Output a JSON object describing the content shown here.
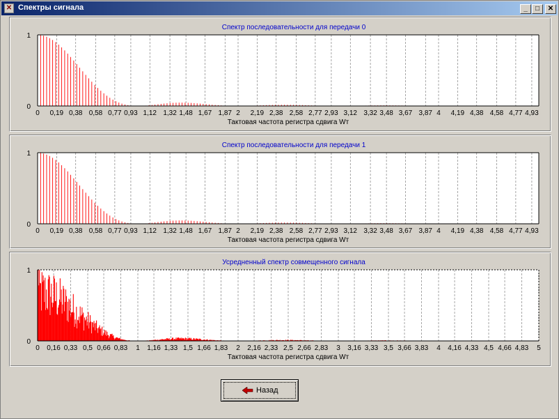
{
  "window": {
    "title": "Спектры сигнала"
  },
  "buttons": {
    "back_label": "Назад"
  },
  "colors": {
    "bar": "#ff0000",
    "title_text": "#0000cc",
    "grid": "#808080"
  },
  "chart_data": [
    {
      "type": "bar",
      "title": "Спектр  последовательности для передачи 0",
      "xlabel": "Тактовая частота регистра сдвига Wт",
      "ylabel": "",
      "xlim": [
        0,
        5
      ],
      "ylim": [
        0,
        1
      ],
      "y_ticks": [
        "0",
        "1"
      ],
      "x_ticks": [
        "0",
        "0,19",
        "0,38",
        "0,58",
        "0,77",
        "0,93",
        "1,12",
        "1,32",
        "1,48",
        "1,67",
        "1,87",
        "2",
        "2,19",
        "2,38",
        "2,58",
        "2,77",
        "2,93",
        "3,12",
        "3,32",
        "3,48",
        "3,67",
        "3,87",
        "4",
        "4,19",
        "4,38",
        "4,58",
        "4,77",
        "4,93"
      ],
      "x_tick_values": [
        0,
        0.19,
        0.38,
        0.58,
        0.77,
        0.93,
        1.12,
        1.32,
        1.48,
        1.67,
        1.87,
        2,
        2.19,
        2.38,
        2.58,
        2.77,
        2.93,
        3.12,
        3.32,
        3.48,
        3.67,
        3.87,
        4,
        4.19,
        4.38,
        4.58,
        4.77,
        4.93
      ],
      "grid": true,
      "series": [
        {
          "model": "sinc2",
          "lines_per_unit": 33.3,
          "amplitude": 1.0
        }
      ]
    },
    {
      "type": "bar",
      "title": "Спектр последовательности для передачи 1",
      "xlabel": "Тактовая частота регистра сдвига Wт",
      "ylabel": "",
      "xlim": [
        0,
        5
      ],
      "ylim": [
        0,
        1
      ],
      "y_ticks": [
        "0",
        "1"
      ],
      "x_ticks": [
        "0",
        "0,19",
        "0,38",
        "0,58",
        "0,77",
        "0,93",
        "1,12",
        "1,32",
        "1,48",
        "1,67",
        "1,87",
        "2",
        "2,19",
        "2,38",
        "2,58",
        "2,77",
        "2,93",
        "3,12",
        "3,32",
        "3,48",
        "3,67",
        "3,87",
        "4",
        "4,19",
        "4,38",
        "4,58",
        "4,77",
        "4,93"
      ],
      "x_tick_values": [
        0,
        0.19,
        0.38,
        0.58,
        0.77,
        0.93,
        1.12,
        1.32,
        1.48,
        1.67,
        1.87,
        2,
        2.19,
        2.38,
        2.58,
        2.77,
        2.93,
        3.12,
        3.32,
        3.48,
        3.67,
        3.87,
        4,
        4.19,
        4.38,
        4.58,
        4.77,
        4.93
      ],
      "grid": true,
      "series": [
        {
          "model": "sinc2",
          "lines_per_unit": 33.3,
          "amplitude": 1.0
        }
      ]
    },
    {
      "type": "bar",
      "title": "Усредненный спектр совмещенного сигнала",
      "xlabel": "Тактовая частота регистра сдвига Wт",
      "ylabel": "",
      "xlim": [
        0,
        5
      ],
      "ylim": [
        0,
        1
      ],
      "y_ticks": [
        "0",
        "1"
      ],
      "x_ticks": [
        "0",
        "0,16",
        "0,33",
        "0,5",
        "0,66",
        "0,83",
        "1",
        "1,16",
        "1,33",
        "1,5",
        "1,66",
        "1,83",
        "2",
        "2,16",
        "2,33",
        "2,5",
        "2,66",
        "2,83",
        "3",
        "3,16",
        "3,33",
        "3,5",
        "3,66",
        "3,83",
        "4",
        "4,16",
        "4,33",
        "4,5",
        "4,66",
        "4,83",
        "5"
      ],
      "x_tick_values": [
        0,
        0.16,
        0.33,
        0.5,
        0.66,
        0.83,
        1,
        1.16,
        1.33,
        1.5,
        1.66,
        1.83,
        2,
        2.16,
        2.33,
        2.5,
        2.66,
        2.83,
        3,
        3.16,
        3.33,
        3.5,
        3.66,
        3.83,
        4,
        4.16,
        4.33,
        4.5,
        4.66,
        4.83,
        5
      ],
      "grid": true,
      "series": [
        {
          "model": "sinc2-noisy",
          "lines_per_unit": 160,
          "amplitude": 0.85
        }
      ]
    }
  ]
}
